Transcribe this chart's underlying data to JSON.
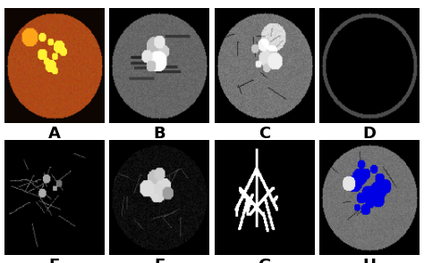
{
  "labels": [
    "A",
    "B",
    "C",
    "D",
    "E",
    "F",
    "G",
    "H"
  ],
  "nrows": 2,
  "ncols": 4,
  "background_color": "#ffffff",
  "label_fontsize": 13,
  "label_fontweight": "bold",
  "label_color": "#000000",
  "figsize": [
    4.74,
    2.95
  ],
  "dpi": 100
}
